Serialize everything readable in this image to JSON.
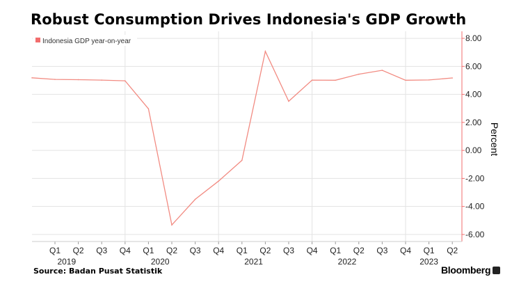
{
  "title": "Robust Consumption Drives Indonesia's GDP Growth",
  "source": "Source:  Badan Pusat Statistik",
  "brand": "Bloomberg",
  "colors": {
    "series": "#f28b82",
    "legend_marker": "#f26d6d",
    "grid": "#e3e3e3",
    "axis": "#f26d6d"
  },
  "chart_data": {
    "type": "line",
    "ylabel": "Percent",
    "ylim": [
      -6.5,
      8.5
    ],
    "yticks": [
      8.0,
      6.0,
      4.0,
      2.0,
      0.0,
      -2.0,
      -4.0,
      -6.0
    ],
    "ytick_labels": [
      "8.00",
      "6.00",
      "4.00",
      "2.00",
      "0.00",
      "-2.00",
      "-4.00",
      "-6.00"
    ],
    "grid": true,
    "legend_placement": "top-left",
    "quarter_labels": [
      "Q1",
      "Q2",
      "Q3",
      "Q4",
      "Q1",
      "Q2",
      "Q3",
      "Q4",
      "Q1",
      "Q2",
      "Q3",
      "Q4",
      "Q1",
      "Q2",
      "Q3",
      "Q4",
      "Q1",
      "Q2"
    ],
    "year_labels": [
      {
        "year": "2019",
        "q_index": 1
      },
      {
        "year": "2020",
        "q_index": 5
      },
      {
        "year": "2021",
        "q_index": 9
      },
      {
        "year": "2022",
        "q_index": 13
      },
      {
        "year": "2023",
        "q_index": 16.5
      }
    ],
    "series": [
      {
        "name": "Indonesia GDP year-on-year",
        "x": [
          "Q4 2018",
          "Q1 2019",
          "Q2 2019",
          "Q3 2019",
          "Q4 2019",
          "Q1 2020",
          "Q2 2020",
          "Q3 2020",
          "Q4 2020",
          "Q1 2021",
          "Q2 2021",
          "Q3 2021",
          "Q4 2021",
          "Q1 2022",
          "Q2 2022",
          "Q3 2022",
          "Q4 2022",
          "Q1 2023",
          "Q2 2023"
        ],
        "values": [
          5.18,
          5.07,
          5.05,
          5.02,
          4.97,
          2.97,
          -5.32,
          -3.49,
          -2.19,
          -0.71,
          7.07,
          3.51,
          5.02,
          5.01,
          5.44,
          5.72,
          5.01,
          5.03,
          5.17
        ]
      }
    ]
  }
}
